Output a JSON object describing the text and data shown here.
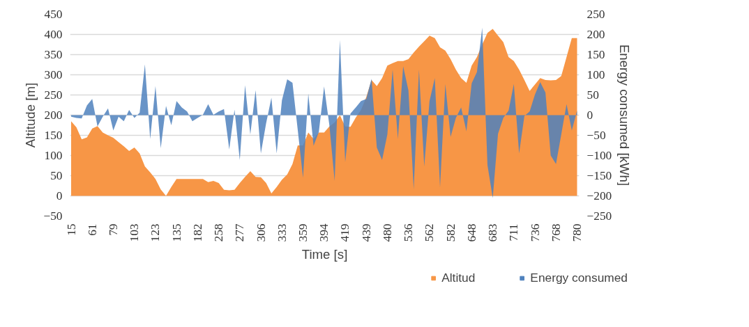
{
  "chart_data": {
    "type": "area",
    "xlabel": "Time [s]",
    "ylabel": "Altitude [m]",
    "y2label": "Energy consumed [kWh]",
    "categories": [
      "15",
      null,
      null,
      null,
      "61",
      null,
      null,
      null,
      "79",
      null,
      null,
      null,
      "103",
      null,
      null,
      null,
      "123",
      null,
      null,
      null,
      "135",
      null,
      null,
      null,
      "182",
      null,
      null,
      null,
      "258",
      null,
      null,
      null,
      "277",
      null,
      null,
      null,
      "306",
      null,
      null,
      null,
      "333",
      null,
      null,
      null,
      "359",
      null,
      null,
      null,
      "394",
      null,
      null,
      null,
      "419",
      null,
      null,
      null,
      "439",
      null,
      null,
      null,
      "480",
      null,
      null,
      null,
      "536",
      null,
      null,
      null,
      "562",
      null,
      null,
      null,
      "582",
      null,
      null,
      null,
      "648",
      null,
      null,
      null,
      "683",
      null,
      null,
      null,
      "711",
      null,
      null,
      null,
      "736",
      null,
      null,
      null,
      "768",
      null,
      null,
      null,
      "780"
    ],
    "series": [
      {
        "name": "Altitud",
        "color": "#f79646",
        "values": [
          185,
          170,
          140,
          145,
          167,
          173,
          157,
          150,
          144,
          133,
          123,
          111,
          120,
          105,
          73,
          58,
          42,
          16,
          0,
          22,
          42,
          42,
          42,
          42,
          42,
          42,
          34,
          37,
          32,
          15,
          14,
          15,
          32,
          47,
          61,
          47,
          46,
          32,
          6,
          22,
          40,
          53,
          79,
          125,
          125,
          157,
          141,
          157,
          157,
          172,
          182,
          200,
          172,
          171,
          194,
          213,
          245,
          287,
          272,
          292,
          323,
          329,
          334,
          334,
          339,
          355,
          370,
          383,
          397,
          391,
          368,
          360,
          339,
          313,
          292,
          280,
          323,
          344,
          375,
          404,
          414,
          397,
          381,
          344,
          334,
          313,
          287,
          260,
          276,
          292,
          287,
          286,
          287,
          297,
          344,
          391,
          391
        ]
      },
      {
        "name": "Energy consumed",
        "color": "#4f81bd",
        "axis": "y2",
        "values": [
          -4,
          -7,
          -8,
          24,
          40,
          -28,
          -4,
          17,
          -38,
          -4,
          -15,
          13,
          -7,
          6,
          126,
          -59,
          72,
          -82,
          23,
          -25,
          35,
          19,
          9,
          -15,
          -7,
          1,
          27,
          1,
          9,
          15,
          -85,
          14,
          -111,
          74,
          -48,
          62,
          -95,
          -20,
          43,
          -95,
          37,
          89,
          80,
          -37,
          -155,
          53,
          -76,
          -42,
          71,
          -25,
          -163,
          186,
          -116,
          4,
          19,
          35,
          40,
          90,
          -80,
          -111,
          -48,
          113,
          -59,
          121,
          61,
          -184,
          113,
          -127,
          35,
          92,
          -179,
          77,
          -54,
          -7,
          19,
          -40,
          79,
          107,
          217,
          -124,
          -205,
          -46,
          -7,
          11,
          77,
          -95,
          -2,
          9,
          51,
          82,
          56,
          -100,
          -121,
          -48,
          27,
          -38,
          11
        ]
      }
    ],
    "ylim": [
      -50,
      450
    ],
    "yticks": [
      -50,
      0,
      50,
      100,
      150,
      200,
      250,
      300,
      350,
      400,
      450
    ],
    "y2lim": [
      -250,
      250
    ],
    "y2ticks": [
      -250,
      -200,
      -150,
      -100,
      -50,
      0,
      50,
      100,
      150,
      200,
      250
    ],
    "grid": "y",
    "legend": "bottom"
  }
}
